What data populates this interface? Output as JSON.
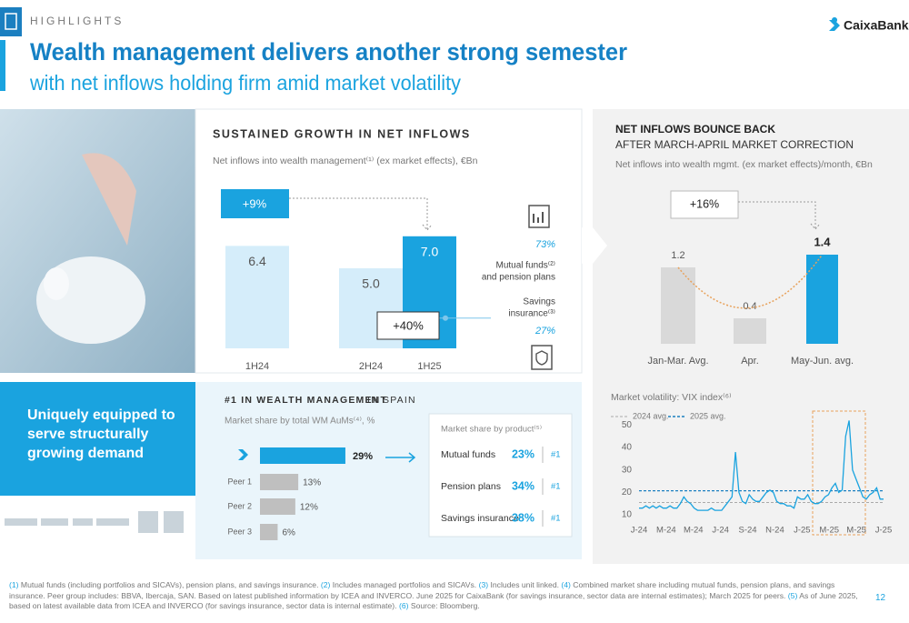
{
  "header": {
    "section": "HIGHLIGHTS",
    "title": "Wealth management delivers another strong semester",
    "subtitle": "with net inflows holding firm amid market volatility",
    "brand": "CaixaBank",
    "page": "12"
  },
  "left_panel": {
    "tagline": [
      "Uniquely equipped to",
      "serve structurally",
      "growing demand"
    ]
  },
  "inflows": {
    "heading": "SUSTAINED GROWTH IN NET INFLOWS",
    "subtitle": "Net inflows into wealth management⁽¹⁾ (ex market effects), €Bn",
    "categories": [
      "1H24",
      "2H24",
      "1H25"
    ],
    "values": [
      6.4,
      5.0,
      7.0
    ],
    "value_labels": [
      "6.4",
      "5.0",
      "7.0"
    ],
    "growth_yoy": "+9%",
    "growth_hoh": "+40%",
    "breakdown": [
      {
        "label": [
          "Mutual funds⁽²⁾",
          "and pension plans"
        ],
        "share": 73,
        "share_label": "73%"
      },
      {
        "label": [
          "Savings",
          "insurance⁽³⁾"
        ],
        "share": 27,
        "share_label": "27%"
      }
    ]
  },
  "market_share": {
    "heading": "#1 IN WEALTH MANAGEMENT",
    "heading_suffix": "IN SPAIN",
    "subtitle": "Market share by total WM AuMs⁽⁴⁾, %",
    "categories": [
      null,
      "Peer 1",
      "Peer 2",
      "Peer 3"
    ],
    "values": [
      29,
      13,
      12,
      6
    ],
    "value_labels": [
      "29%",
      "13%",
      "12%",
      "6%"
    ],
    "products_title": "Market share by product⁽⁵⁾",
    "products": [
      {
        "name": "Mutual funds",
        "share": 23,
        "share_label": "23%",
        "rank": "#1"
      },
      {
        "name": "Pension plans",
        "share": 34,
        "share_label": "34%",
        "rank": "#1"
      },
      {
        "name": "Savings insurance",
        "share": 38,
        "share_label": "38%",
        "rank": "#1"
      }
    ]
  },
  "monthly": {
    "heading": "NET INFLOWS BOUNCE BACK",
    "heading2": "AFTER MARCH-APRIL MARKET CORRECTION",
    "subtitle": "Net inflows into wealth mgmt. (ex market effects)/month, €Bn",
    "categories": [
      "Jan-Mar. Avg.",
      "Apr.",
      "May-Jun. avg."
    ],
    "values": [
      1.2,
      0.4,
      1.4
    ],
    "growth": "+16%"
  },
  "vix": {
    "title": "Market volatility: VIX index⁽⁶⁾",
    "avg_2024": {
      "name": "2024 avg.",
      "value": 15.5
    },
    "avg_2025": {
      "name": "2025 avg.",
      "value": 20.7
    },
    "ylim": [
      8,
      55
    ],
    "yticks": [
      10,
      20,
      30,
      40,
      50
    ],
    "x_labels": [
      "J-24",
      "M-24",
      "M-24",
      "J-24",
      "S-24",
      "N-24",
      "J-25",
      "M-25",
      "M-25",
      "J-25"
    ],
    "values": [
      13,
      13,
      14,
      13,
      14,
      13,
      14,
      13,
      13,
      14,
      13,
      13,
      15,
      18,
      16,
      15,
      13,
      12,
      12,
      12,
      12,
      13,
      12,
      12,
      12,
      14,
      16,
      18,
      38,
      20,
      16,
      15,
      19,
      17,
      16,
      16,
      18,
      20,
      21,
      20,
      16,
      15,
      15,
      14,
      14,
      13,
      18,
      17,
      17,
      19,
      16,
      15,
      15,
      16,
      18,
      19,
      22,
      24,
      20,
      21,
      45,
      52,
      30,
      26,
      22,
      18,
      17,
      19,
      20,
      22,
      17,
      17
    ]
  },
  "footnotes": [
    {
      "mark": "(1)",
      "text": "Mutual funds (including portfolios and SICAVs), pension plans, and savings insurance."
    },
    {
      "mark": "(2)",
      "text": "Includes managed portfolios and SICAVs."
    },
    {
      "mark": "(3)",
      "text": "Includes unit linked."
    },
    {
      "mark": "(4)",
      "text": "Combined market share including mutual funds, pension plans, and savings insurance. Peer group includes: BBVA, Ibercaja, SAN. Based on latest published information by ICEA and INVERCO. June 2025 for CaixaBank (for savings insurance, sector data are internal estimates); March 2025 for peers."
    },
    {
      "mark": "(5)",
      "text": "As of June 2025, based on latest available data from ICEA and INVERCO (for savings insurance, sector data is internal estimate)."
    },
    {
      "mark": "(6)",
      "text": "Source: Bloomberg."
    }
  ]
}
